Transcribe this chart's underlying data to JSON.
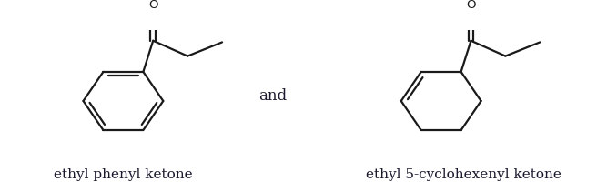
{
  "background_color": "#ffffff",
  "text_color": "#1a1a2e",
  "label1": "ethyl phenyl ketone",
  "label2": "ethyl 5-cyclohexenyl ketone",
  "and_text": "and",
  "line_color": "#1a1a1a",
  "line_width": 1.6,
  "label_fontsize": 11,
  "and_fontsize": 12,
  "fig_width": 6.56,
  "fig_height": 2.11,
  "xlim": [
    0,
    6.56
  ],
  "ylim": [
    0,
    2.11
  ]
}
